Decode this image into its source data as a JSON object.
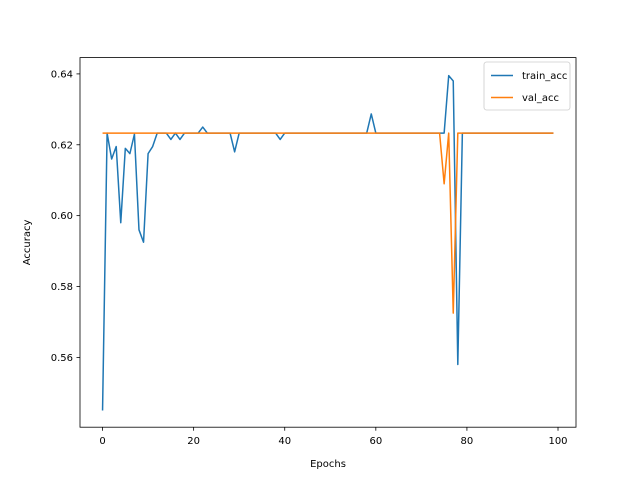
{
  "chart_data": {
    "type": "line",
    "title": "",
    "xlabel": "Epochs",
    "ylabel": "Accuracy",
    "xlim": [
      -4.95,
      103.95
    ],
    "ylim": [
      0.5403,
      0.6446
    ],
    "xticks": [
      0,
      20,
      40,
      60,
      80,
      100
    ],
    "yticks": [
      0.56,
      0.58,
      0.6,
      0.62,
      0.64
    ],
    "xtick_labels": [
      "0",
      "20",
      "40",
      "60",
      "80",
      "100"
    ],
    "ytick_labels": [
      "0.56",
      "0.58",
      "0.60",
      "0.62",
      "0.64"
    ],
    "grid": false,
    "legend_position": "top-right",
    "series": [
      {
        "name": "train_acc",
        "color": "#1f77b4",
        "values": [
          0.545,
          0.6233,
          0.616,
          0.6195,
          0.598,
          0.619,
          0.6175,
          0.623,
          0.596,
          0.5925,
          0.6175,
          0.6195,
          0.6233,
          0.6233,
          0.6233,
          0.6215,
          0.6233,
          0.6215,
          0.6233,
          0.6233,
          0.6233,
          0.6233,
          0.625,
          0.6233,
          0.6233,
          0.6233,
          0.6233,
          0.6233,
          0.6233,
          0.618,
          0.6233,
          0.6233,
          0.6233,
          0.6233,
          0.6233,
          0.6233,
          0.6233,
          0.6233,
          0.6233,
          0.6215,
          0.6233,
          0.6233,
          0.6233,
          0.6233,
          0.6233,
          0.6233,
          0.6233,
          0.6233,
          0.6233,
          0.6233,
          0.6233,
          0.6233,
          0.6233,
          0.6233,
          0.6233,
          0.6233,
          0.6233,
          0.6233,
          0.6233,
          0.6287,
          0.6233,
          0.6233,
          0.6233,
          0.6233,
          0.6233,
          0.6233,
          0.6233,
          0.6233,
          0.6233,
          0.6233,
          0.6233,
          0.6233,
          0.6233,
          0.6233,
          0.6233,
          0.6233,
          0.6395,
          0.638,
          0.558,
          0.6233,
          0.6233,
          0.6233,
          0.6233,
          0.6233,
          0.6233,
          0.6233,
          0.6233,
          0.6233,
          0.6233,
          0.6233,
          0.6233,
          0.6233,
          0.6233,
          0.6233,
          0.6233,
          0.6233,
          0.6233,
          0.6233,
          0.6233,
          0.6233
        ]
      },
      {
        "name": "val_acc",
        "color": "#ff7f0e",
        "values": [
          0.6233,
          0.6233,
          0.6233,
          0.6233,
          0.6233,
          0.6233,
          0.6233,
          0.6233,
          0.6233,
          0.6233,
          0.6233,
          0.6233,
          0.6233,
          0.6233,
          0.6233,
          0.6233,
          0.6233,
          0.6233,
          0.6233,
          0.6233,
          0.6233,
          0.6233,
          0.6233,
          0.6233,
          0.6233,
          0.6233,
          0.6233,
          0.6233,
          0.6233,
          0.6233,
          0.6233,
          0.6233,
          0.6233,
          0.6233,
          0.6233,
          0.6233,
          0.6233,
          0.6233,
          0.6233,
          0.6233,
          0.6233,
          0.6233,
          0.6233,
          0.6233,
          0.6233,
          0.6233,
          0.6233,
          0.6233,
          0.6233,
          0.6233,
          0.6233,
          0.6233,
          0.6233,
          0.6233,
          0.6233,
          0.6233,
          0.6233,
          0.6233,
          0.6233,
          0.6233,
          0.6233,
          0.6233,
          0.6233,
          0.6233,
          0.6233,
          0.6233,
          0.6233,
          0.6233,
          0.6233,
          0.6233,
          0.6233,
          0.6233,
          0.6233,
          0.6233,
          0.6233,
          0.609,
          0.6233,
          0.5725,
          0.6233,
          0.6233,
          0.6233,
          0.6233,
          0.6233,
          0.6233,
          0.6233,
          0.6233,
          0.6233,
          0.6233,
          0.6233,
          0.6233,
          0.6233,
          0.6233,
          0.6233,
          0.6233,
          0.6233,
          0.6233,
          0.6233,
          0.6233,
          0.6233,
          0.6233
        ]
      }
    ]
  }
}
